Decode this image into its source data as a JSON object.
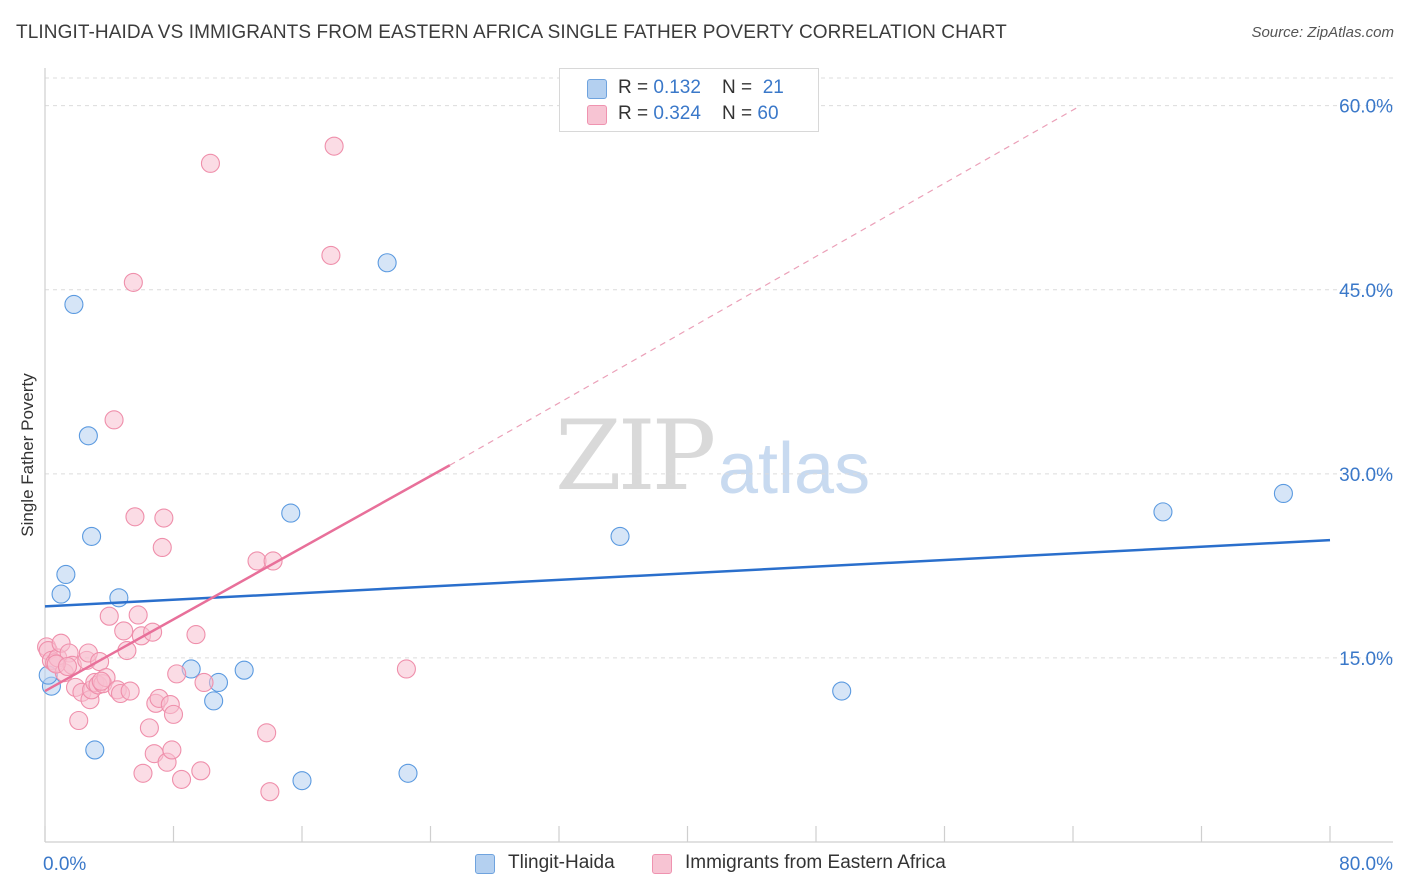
{
  "title": "TLINGIT-HAIDA VS IMMIGRANTS FROM EASTERN AFRICA SINGLE FATHER POVERTY CORRELATION CHART",
  "source": "Source: ZipAtlas.com",
  "watermark": {
    "zip": "ZIP",
    "atlas": "atlas"
  },
  "legend_top": [
    {
      "r_label": "R = ",
      "r_value": "0.132",
      "n_label": "N = ",
      "n_value": "21",
      "color": "#a8c8ee"
    },
    {
      "r_label": "R = ",
      "r_value": "0.324",
      "n_label": "N = ",
      "n_value": "60",
      "color": "#f7b8cb"
    }
  ],
  "legend_bottom": [
    {
      "label": "Tlingit-Haida",
      "color": "#a8c8ee"
    },
    {
      "label": "Immigrants from Eastern Africa",
      "color": "#f7b8cb"
    }
  ],
  "chart_data": {
    "type": "scatter",
    "title": "TLINGIT-HAIDA VS IMMIGRANTS FROM EASTERN AFRICA SINGLE FATHER POVERTY CORRELATION CHART",
    "xlabel": "",
    "ylabel": "Single Father Poverty",
    "xlim": [
      0,
      80
    ],
    "ylim": [
      0,
      62.5
    ],
    "x_tick_labels": [
      "0.0%",
      "80.0%"
    ],
    "y_ticks": [
      15,
      30,
      45,
      60
    ],
    "y_tick_labels": [
      "15.0%",
      "30.0%",
      "45.0%",
      "60.0%"
    ],
    "grid": true,
    "series": [
      {
        "name": "Tlingit-Haida",
        "color": "#5b9ae0",
        "fill": "#b4d0f0",
        "points": [
          [
            0.4,
            12.7
          ],
          [
            1.0,
            20.2
          ],
          [
            1.3,
            21.8
          ],
          [
            1.8,
            43.8
          ],
          [
            2.7,
            33.1
          ],
          [
            2.9,
            24.9
          ],
          [
            3.1,
            7.5
          ],
          [
            4.6,
            19.9
          ],
          [
            9.1,
            14.1
          ],
          [
            10.5,
            11.5
          ],
          [
            10.8,
            13.0
          ],
          [
            12.4,
            14.0
          ],
          [
            15.3,
            26.8
          ],
          [
            16.0,
            5.0
          ],
          [
            21.3,
            47.2
          ],
          [
            22.6,
            5.6
          ],
          [
            35.8,
            24.9
          ],
          [
            49.6,
            12.3
          ],
          [
            69.6,
            26.9
          ],
          [
            77.1,
            28.4
          ],
          [
            0.2,
            13.6
          ]
        ],
        "trend": {
          "x0": 0,
          "y0": 19.2,
          "x1": 80,
          "y1": 24.6,
          "color": "#2a6fcc"
        }
      },
      {
        "name": "Immigrants from Eastern Africa",
        "color": "#ef8fab",
        "fill": "#f7bfd0",
        "points": [
          [
            0.1,
            15.9
          ],
          [
            0.2,
            15.6
          ],
          [
            0.4,
            14.8
          ],
          [
            0.6,
            14.6
          ],
          [
            0.8,
            15.0
          ],
          [
            1.0,
            16.2
          ],
          [
            1.2,
            13.8
          ],
          [
            1.5,
            15.4
          ],
          [
            1.7,
            14.4
          ],
          [
            1.9,
            12.6
          ],
          [
            2.1,
            9.9
          ],
          [
            2.3,
            12.2
          ],
          [
            2.6,
            14.8
          ],
          [
            2.7,
            15.4
          ],
          [
            2.8,
            11.6
          ],
          [
            2.9,
            12.4
          ],
          [
            3.1,
            13.0
          ],
          [
            3.3,
            12.8
          ],
          [
            3.4,
            14.7
          ],
          [
            3.6,
            12.9
          ],
          [
            3.8,
            13.4
          ],
          [
            4.0,
            18.4
          ],
          [
            4.3,
            34.4
          ],
          [
            4.5,
            12.4
          ],
          [
            4.7,
            12.1
          ],
          [
            4.9,
            17.2
          ],
          [
            5.1,
            15.6
          ],
          [
            5.3,
            12.3
          ],
          [
            5.5,
            45.6
          ],
          [
            5.6,
            26.5
          ],
          [
            5.8,
            18.5
          ],
          [
            6.0,
            16.8
          ],
          [
            6.1,
            5.6
          ],
          [
            6.5,
            9.3
          ],
          [
            6.7,
            17.1
          ],
          [
            6.8,
            7.2
          ],
          [
            6.9,
            11.3
          ],
          [
            7.1,
            11.7
          ],
          [
            7.3,
            24.0
          ],
          [
            7.4,
            26.4
          ],
          [
            7.6,
            6.5
          ],
          [
            7.8,
            11.2
          ],
          [
            7.9,
            7.5
          ],
          [
            8.0,
            10.4
          ],
          [
            8.2,
            13.7
          ],
          [
            8.5,
            5.1
          ],
          [
            9.4,
            16.9
          ],
          [
            9.7,
            5.8
          ],
          [
            9.9,
            13.0
          ],
          [
            10.3,
            55.3
          ],
          [
            13.2,
            22.9
          ],
          [
            13.8,
            8.9
          ],
          [
            14.0,
            4.1
          ],
          [
            14.2,
            22.9
          ],
          [
            17.8,
            47.8
          ],
          [
            18.0,
            56.7
          ],
          [
            22.5,
            14.1
          ],
          [
            0.7,
            14.5
          ],
          [
            1.4,
            14.3
          ],
          [
            3.5,
            13.1
          ]
        ],
        "trend": {
          "x0": 0,
          "y0": 12.3,
          "x1": 25.2,
          "y1": 30.7,
          "color": "#e8709a"
        },
        "trend_extension": {
          "x0": 25.2,
          "y0": 30.7,
          "x1": 64.2,
          "y1": 59.8
        }
      }
    ]
  }
}
